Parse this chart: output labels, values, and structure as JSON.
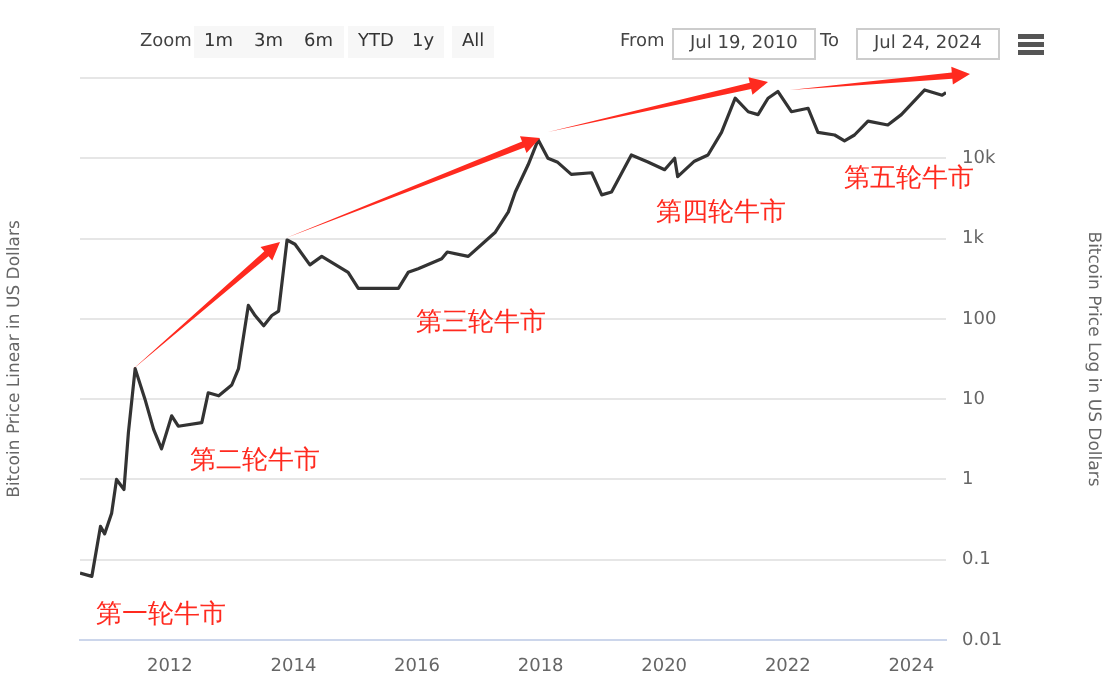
{
  "chart_data": {
    "type": "line",
    "ylabel": "Bitcoin Price Linear in US Dollars",
    "y2label": "Bitcoin Price Log in US Dollars",
    "annotations": [
      "Zoom",
      "1m",
      "3m",
      "6m",
      "YTD",
      "1y",
      "All",
      "From",
      "Jul 19, 2010",
      "To",
      "Jul 24, 2024",
      "第一轮牛市",
      "第二轮牛市",
      "第三轮牛市",
      "第四轮牛市",
      "第五轮牛市"
    ],
    "x": [
      "2010-07-19",
      "2010-09-27",
      "2010-11-17",
      "2010-12-12",
      "2011-01-22",
      "2011-02-20",
      "2011-04-05",
      "2011-05-01",
      "2011-06-10",
      "2011-08-07",
      "2011-09-27",
      "2011-11-13",
      "2012-01-12",
      "2012-02-20",
      "2012-07-08",
      "2012-08-15",
      "2012-10-16",
      "2013-01-01",
      "2013-02-10",
      "2013-04-09",
      "2013-05-19",
      "2013-07-09",
      "2013-08-26",
      "2013-10-05",
      "2013-11-24",
      "2014-01-10",
      "2014-04-08",
      "2014-06-17",
      "2014-11-20",
      "2015-01-19",
      "2015-04-27",
      "2015-09-13",
      "2015-11-10",
      "2016-01-08",
      "2016-05-26",
      "2016-06-28",
      "2016-10-30",
      "2017-04-08",
      "2017-06-24",
      "2017-08-04",
      "2017-10-19",
      "2017-12-17",
      "2018-02-13",
      "2018-04-12",
      "2018-07-01",
      "2018-10-30",
      "2018-12-28",
      "2019-02-24",
      "2019-06-21",
      "2019-09-27",
      "2020-01-04",
      "2020-03-03",
      "2020-03-21",
      "2020-06-28",
      "2020-09-16",
      "2020-12-05",
      "2021-02-24",
      "2021-05-12",
      "2021-07-09",
      "2021-09-06",
      "2021-11-03",
      "2022-01-22",
      "2022-05-01",
      "2022-06-28",
      "2022-10-05",
      "2022-12-02",
      "2023-01-30",
      "2023-04-20",
      "2023-08-15",
      "2023-11-03",
      "2024-03-20",
      "2024-05-18",
      "2024-07-01",
      "2024-07-24"
    ],
    "series": [
      {
        "color": "#333333",
        "axis": "y2",
        "values": [
          0.068,
          0.062,
          0.26,
          0.21,
          0.38,
          1,
          0.75,
          3.8,
          24,
          10,
          4.2,
          2.4,
          6.2,
          4.6,
          5.1,
          12,
          11,
          15,
          24,
          147,
          110,
          82,
          110,
          125,
          960,
          850,
          470,
          600,
          380,
          240,
          240,
          240,
          380,
          420,
          560,
          680,
          600,
          1200,
          2150,
          3800,
          8300,
          17000,
          10000,
          8900,
          6300,
          6600,
          3500,
          3800,
          11000,
          9000,
          7200,
          10000,
          5900,
          9200,
          11000,
          21000,
          56000,
          38000,
          35000,
          56000,
          68000,
          38000,
          42000,
          21000,
          19500,
          16500,
          19500,
          29000,
          26000,
          35000,
          71000,
          65000,
          61000,
          66000
        ]
      }
    ],
    "xlim": [
      "2010-07-19",
      "2024-07-24"
    ],
    "xticks": [
      "2012",
      "2014",
      "2016",
      "2018",
      "2020",
      "2022",
      "2024"
    ],
    "y2lim": [
      0.01,
      100000
    ],
    "y2ticks": [
      0.01,
      0.1,
      1,
      10,
      100,
      {
        "value": 1000,
        "label": "1k"
      },
      {
        "value": 10000,
        "label": "10k"
      },
      {
        "value": 100000,
        "label": null
      }
    ],
    "log": "y2",
    "grid": "y",
    "legend": false,
    "marker": "none",
    "line_style": "solid"
  }
}
